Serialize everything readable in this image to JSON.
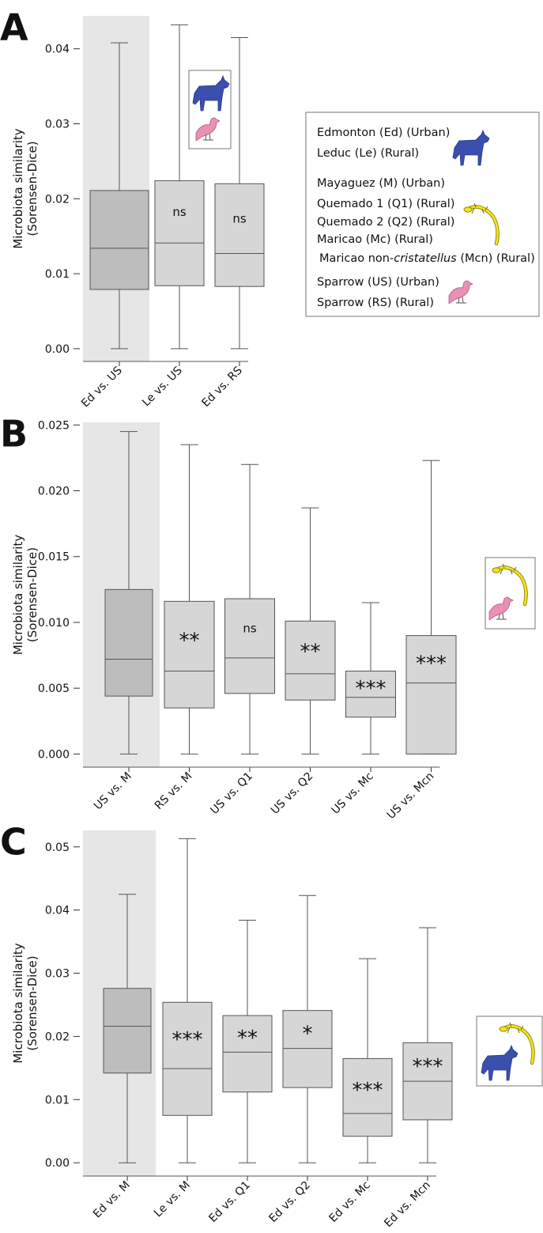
{
  "chart_data": [
    {
      "type": "box",
      "panel": "A",
      "ylabel": [
        "Microbiota similarity",
        "(Sorensen-Dice)"
      ],
      "categories": [
        "Ed vs. US",
        "Le vs. US",
        "Ed vs. RS"
      ],
      "stats": [
        {
          "min": 0,
          "q1": 0.0079,
          "median": 0.0134,
          "q3": 0.0211,
          "max": 0.0408
        },
        {
          "min": 0,
          "q1": 0.0084,
          "median": 0.0141,
          "q3": 0.0224,
          "max": 0.0432
        },
        {
          "min": 0,
          "q1": 0.0083,
          "median": 0.0127,
          "q3": 0.022,
          "max": 0.0415
        }
      ],
      "significance": [
        null,
        "ns",
        "ns"
      ],
      "colors": [
        "#bdbdbd",
        "#d6d6d6",
        "#d6d6d6"
      ],
      "shade_color": "#e6e6e6",
      "ylim": [
        -0.0017,
        0.0444
      ],
      "yticks": [
        {
          "value": 0,
          "label": "0.00"
        },
        0.01,
        0.02,
        0.03,
        0.04
      ],
      "legend": [
        "Edmonton (Ed) (Urban)",
        "Leduc (Le)  (Rural)",
        "Mayaguez (M) (Urban)",
        "Quemado 1 (Q1) (Rural)",
        "Quemado 2 (Q2) (Rural)",
        "Maricao (Mc) (Rural)",
        [
          "Maricao non-",
          "cristatellus",
          " (Mcn) (Rural)"
        ],
        "Sparrow (US) (Urban)",
        "Sparrow (RS) (Rural)"
      ]
    },
    {
      "type": "box",
      "panel": "B",
      "ylabel": [
        "Microbiota similarity",
        "(Sorensen-Dice)"
      ],
      "categories": [
        "US vs. M",
        "RS vs. M",
        "US vs. Q1",
        "US vs. Q2",
        "US vs. Mc",
        "US vs. Mcn"
      ],
      "stats": [
        {
          "min": 0,
          "q1": 0.0044,
          "median": 0.0072,
          "q3": 0.0125,
          "max": 0.0245
        },
        {
          "min": 0,
          "q1": 0.0035,
          "median": 0.0063,
          "q3": 0.0116,
          "max": 0.0235
        },
        {
          "min": 0,
          "q1": 0.0046,
          "median": 0.0073,
          "q3": 0.0118,
          "max": 0.022
        },
        {
          "min": 0,
          "q1": 0.0041,
          "median": 0.0061,
          "q3": 0.0101,
          "max": 0.0187
        },
        {
          "min": 0,
          "q1": 0.0028,
          "median": 0.0043,
          "q3": 0.0063,
          "max": 0.0115
        },
        {
          "min": 0,
          "q1": 0,
          "median": 0.0054,
          "q3": 0.009,
          "max": 0.0223
        }
      ],
      "significance": [
        null,
        "**",
        "ns",
        "**",
        "***",
        "***"
      ],
      "colors": [
        "#bdbdbd",
        "#d6d6d6",
        "#d6d6d6",
        "#d6d6d6",
        "#d6d6d6",
        "#d6d6d6"
      ],
      "shade_color": "#e6e6e6",
      "ylim": [
        -0.001,
        0.0252
      ],
      "yticks": [
        {
          "value": 0,
          "label": "0.000"
        },
        0.005,
        {
          "value": 0.01,
          "label": "0.010"
        },
        0.015,
        {
          "value": 0.02,
          "label": "0.020"
        },
        0.025
      ]
    },
    {
      "type": "box",
      "panel": "C",
      "ylabel": [
        "Microbiota similarity",
        "(Sorensen-Dice)"
      ],
      "categories": [
        "Ed vs. M",
        "Le vs. M",
        "Ed vs. Q1",
        "Ed vs. Q2",
        "Ed vs. Mc",
        "Ed vs. Mcn"
      ],
      "stats": [
        {
          "min": 0,
          "q1": 0.0142,
          "median": 0.0216,
          "q3": 0.0276,
          "max": 0.0425
        },
        {
          "min": 0,
          "q1": 0.0075,
          "median": 0.0149,
          "q3": 0.0254,
          "max": 0.0513
        },
        {
          "min": 0,
          "q1": 0.0112,
          "median": 0.0175,
          "q3": 0.0233,
          "max": 0.0384
        },
        {
          "min": 0,
          "q1": 0.0119,
          "median": 0.0181,
          "q3": 0.0241,
          "max": 0.0423
        },
        {
          "min": 0,
          "q1": 0.0042,
          "median": 0.0078,
          "q3": 0.0165,
          "max": 0.0323
        },
        {
          "min": 0,
          "q1": 0.0068,
          "median": 0.0129,
          "q3": 0.019,
          "max": 0.0372
        }
      ],
      "significance": [
        null,
        "***",
        "**",
        "*",
        "***",
        "***"
      ],
      "colors": [
        "#bdbdbd",
        "#d6d6d6",
        "#d6d6d6",
        "#d6d6d6",
        "#d6d6d6",
        "#d6d6d6"
      ],
      "shade_color": "#e6e6e6",
      "ylim": [
        -0.0021,
        0.0526
      ],
      "yticks": [
        {
          "value": 0,
          "label": "0.00"
        },
        0.01,
        0.02,
        0.03,
        0.04,
        0.05
      ]
    }
  ]
}
